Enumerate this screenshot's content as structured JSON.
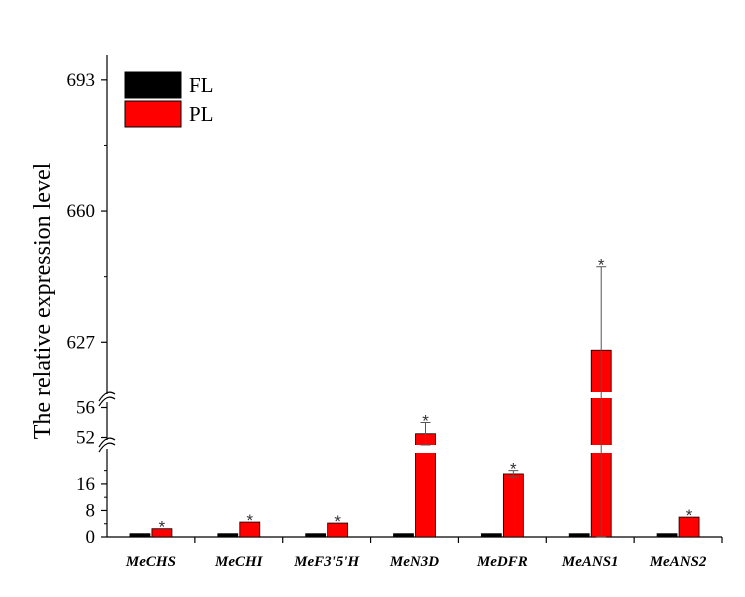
{
  "chart_data": {
    "type": "bar",
    "ylabel": "The relative expression level",
    "categories": [
      "MeCHS",
      "MeCHI",
      "MeF3'5'H",
      "MeN3D",
      "MeDFR",
      "MeANS1",
      "MeANS2"
    ],
    "series": [
      {
        "name": "FL",
        "color": "#000000",
        "values": [
          1,
          1,
          1,
          1,
          1,
          1,
          1
        ],
        "errors": [
          0,
          0,
          0,
          0,
          0,
          0,
          0
        ]
      },
      {
        "name": "PL",
        "color": "#ff0000",
        "values": [
          2.5,
          4.5,
          4.2,
          52.5,
          19,
          625,
          6
        ],
        "errors": [
          0,
          0,
          0,
          1.5,
          1,
          21,
          0
        ]
      }
    ],
    "significance": [
      "*",
      "*",
      "*",
      "*",
      "*",
      "*",
      "*"
    ],
    "y_ticks": [
      "0",
      "8",
      "16",
      "52",
      "56",
      "627",
      "660",
      "693"
    ],
    "axis_breaks": [
      [
        22,
        51
      ],
      [
        57,
        615
      ]
    ],
    "legend_position": "top-left",
    "grid": false
  }
}
